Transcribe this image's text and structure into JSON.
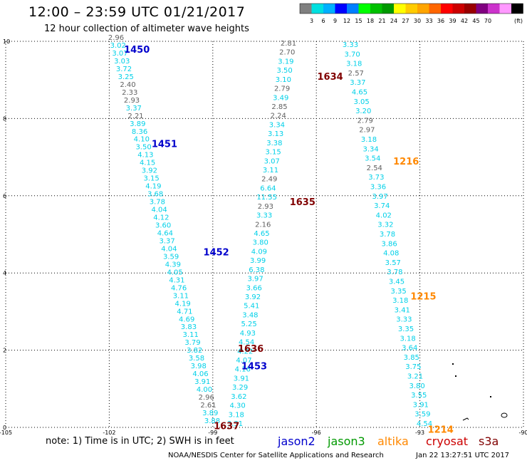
{
  "title": "12:00 – 23:59 UTC 01/21/2017",
  "subtitle": "12 hour collection of altimeter wave heights",
  "note": "note:  1) Time is in UTC; 2) SWH is in feet",
  "credit": "NOAA/NESDIS Center for Satellite Applications and Research",
  "timestamp": "Jan 22 13:27:51 UTC 2017",
  "satellites": [
    {
      "name": "jason2",
      "color": "#0000cc"
    },
    {
      "name": "jason3",
      "color": "#009900"
    },
    {
      "name": "altika",
      "color": "#ff8800"
    },
    {
      "name": "cryosat",
      "color": "#cc0000"
    },
    {
      "name": "s3a",
      "color": "#800000"
    }
  ],
  "legend": {
    "colors": [
      "#808080",
      "#00e0e0",
      "#00b0ff",
      "#0000ff",
      "#007fff",
      "#00ff00",
      "#00c000",
      "#009900",
      "#ffff00",
      "#ffcc00",
      "#ffa500",
      "#ff6600",
      "#ff0000",
      "#cc0000",
      "#990000",
      "#800080",
      "#cc33cc",
      "#ff99ff",
      "#000000"
    ],
    "labels": [
      "3",
      "6",
      "9",
      "12",
      "15",
      "18",
      "21",
      "24",
      "27",
      "30",
      "33",
      "36",
      "39",
      "42",
      "45",
      "70"
    ],
    "unit": "(ft)"
  },
  "axes": {
    "x_ticks": [
      "-105",
      "-102",
      "-99",
      "-96",
      "-93",
      "-90"
    ],
    "y_ticks": [
      "0",
      "2",
      "4",
      "6",
      "8",
      "10"
    ],
    "xlim": [
      -105,
      -90
    ],
    "ylim": [
      0,
      10
    ]
  },
  "markers": {
    "text_colors": {
      "gray": "#606060",
      "cyan": "#00d0e8",
      "orange": "#ff8800",
      "black": "#000000"
    },
    "pass_label_colors": {
      "jason2": "#0000cc",
      "s3a": "#800000",
      "altika": "#ff8800"
    }
  },
  "passes": [
    {
      "id": "1450",
      "sat": "jason2",
      "label_pos": [
        -101.2,
        9.8
      ]
    },
    {
      "id": "1451",
      "sat": "jason2",
      "label_pos": [
        -100.4,
        7.35
      ]
    },
    {
      "id": "1452",
      "sat": "jason2",
      "label_pos": [
        -98.9,
        4.55
      ]
    },
    {
      "id": "1453",
      "sat": "jason2",
      "label_pos": [
        -97.8,
        1.6
      ]
    },
    {
      "id": "1634",
      "sat": "s3a",
      "label_pos": [
        -95.6,
        9.1
      ]
    },
    {
      "id": "1635",
      "sat": "s3a",
      "label_pos": [
        -96.4,
        5.85
      ]
    },
    {
      "id": "1636",
      "sat": "s3a",
      "label_pos": [
        -97.9,
        2.05
      ]
    },
    {
      "id": "1637",
      "sat": "s3a",
      "label_pos": [
        -98.6,
        0.05
      ]
    },
    {
      "id": "1216",
      "sat": "altika",
      "label_pos": [
        -93.4,
        6.9
      ]
    },
    {
      "id": "1215",
      "sat": "altika",
      "label_pos": [
        -92.9,
        3.4
      ]
    },
    {
      "id": "1214",
      "sat": "altika",
      "label_pos": [
        -92.4,
        -0.05
      ]
    }
  ],
  "swh_tracks": {
    "jason2": [
      [
        "2.96",
        "gray"
      ],
      [
        "3.02",
        "cyan"
      ],
      [
        "3.07",
        "cyan"
      ],
      [
        "3.03",
        "cyan"
      ],
      [
        "3.72",
        "cyan"
      ],
      [
        "3.25",
        "cyan"
      ],
      [
        "2.40",
        "gray"
      ],
      [
        "2.33",
        "gray"
      ],
      [
        "2.93",
        "gray"
      ],
      [
        "3.37",
        "cyan"
      ],
      [
        "2.21",
        "gray"
      ],
      [
        "3.89",
        "cyan"
      ],
      [
        "8.36",
        "cyan"
      ],
      [
        "4.10",
        "cyan"
      ],
      [
        "3.50",
        "cyan"
      ],
      [
        "4.13",
        "cyan"
      ],
      [
        "4.15",
        "cyan"
      ],
      [
        "3.92",
        "cyan"
      ],
      [
        "3.15",
        "cyan"
      ],
      [
        "4.19",
        "cyan"
      ],
      [
        "3.68",
        "cyan"
      ],
      [
        "3.78",
        "cyan"
      ],
      [
        "4.04",
        "cyan"
      ],
      [
        "4.12",
        "cyan"
      ],
      [
        "3.60",
        "cyan"
      ],
      [
        "4.64",
        "cyan"
      ],
      [
        "3.37",
        "cyan"
      ],
      [
        "4.04",
        "cyan"
      ],
      [
        "3.59",
        "cyan"
      ],
      [
        "4.39",
        "cyan"
      ],
      [
        "4.05",
        "cyan"
      ],
      [
        "4.31",
        "cyan"
      ],
      [
        "4.76",
        "cyan"
      ],
      [
        "3.11",
        "cyan"
      ],
      [
        "4.19",
        "cyan"
      ],
      [
        "4.71",
        "cyan"
      ],
      [
        "4.69",
        "cyan"
      ],
      [
        "3.83",
        "cyan"
      ],
      [
        "3.11",
        "cyan"
      ],
      [
        "3.79",
        "cyan"
      ],
      [
        "3.82",
        "cyan"
      ],
      [
        "3.58",
        "cyan"
      ],
      [
        "3.98",
        "cyan"
      ],
      [
        "4.06",
        "cyan"
      ],
      [
        "3.91",
        "cyan"
      ],
      [
        "4.00",
        "cyan"
      ],
      [
        "2.96",
        "gray"
      ],
      [
        "2.61",
        "gray"
      ],
      [
        "3.89",
        "cyan"
      ],
      [
        "3.88",
        "cyan"
      ]
    ],
    "s3a": [
      [
        "2.81",
        "gray"
      ],
      [
        "2.70",
        "gray"
      ],
      [
        "3.19",
        "cyan"
      ],
      [
        "3.50",
        "cyan"
      ],
      [
        "3.10",
        "cyan"
      ],
      [
        "2.79",
        "gray"
      ],
      [
        "3.49",
        "cyan"
      ],
      [
        "2.85",
        "gray"
      ],
      [
        "2.24",
        "gray"
      ],
      [
        "3.34",
        "cyan"
      ],
      [
        "3.13",
        "cyan"
      ],
      [
        "3.38",
        "cyan"
      ],
      [
        "3.15",
        "cyan"
      ],
      [
        "3.07",
        "cyan"
      ],
      [
        "3.11",
        "cyan"
      ],
      [
        "2.49",
        "gray"
      ],
      [
        "6.64",
        "cyan"
      ],
      [
        "11.55",
        "cyan"
      ],
      [
        "2.93",
        "gray"
      ],
      [
        "3.33",
        "cyan"
      ],
      [
        "2.16",
        "gray"
      ],
      [
        "4.65",
        "cyan"
      ],
      [
        "3.80",
        "cyan"
      ],
      [
        "4.09",
        "cyan"
      ],
      [
        "3.99",
        "cyan"
      ],
      [
        "6.38",
        "cyan"
      ],
      [
        "3.97",
        "cyan"
      ],
      [
        "3.66",
        "cyan"
      ],
      [
        "3.92",
        "cyan"
      ],
      [
        "5.41",
        "cyan"
      ],
      [
        "3.48",
        "cyan"
      ],
      [
        "5.25",
        "cyan"
      ],
      [
        "4.93",
        "cyan"
      ],
      [
        "4.54",
        "cyan"
      ],
      [
        "4.22",
        "cyan"
      ],
      [
        "4.07",
        "cyan"
      ],
      [
        "4.16",
        "cyan"
      ],
      [
        "3.91",
        "cyan"
      ],
      [
        "3.29",
        "cyan"
      ],
      [
        "3.62",
        "cyan"
      ],
      [
        "4.30",
        "cyan"
      ],
      [
        "3.18",
        "cyan"
      ],
      [
        "3.31",
        "cyan"
      ]
    ],
    "altika": [
      [
        "3.33",
        "cyan"
      ],
      [
        "3.70",
        "cyan"
      ],
      [
        "3.18",
        "cyan"
      ],
      [
        "2.57",
        "gray"
      ],
      [
        "3.37",
        "cyan"
      ],
      [
        "4.65",
        "cyan"
      ],
      [
        "3.05",
        "cyan"
      ],
      [
        "3.20",
        "cyan"
      ],
      [
        "2.79",
        "gray"
      ],
      [
        "2.97",
        "gray"
      ],
      [
        "3.18",
        "cyan"
      ],
      [
        "3.34",
        "cyan"
      ],
      [
        "3.54",
        "cyan"
      ],
      [
        "2.54",
        "gray"
      ],
      [
        "3.73",
        "cyan"
      ],
      [
        "3.36",
        "cyan"
      ],
      [
        "3.97",
        "cyan"
      ],
      [
        "3.74",
        "cyan"
      ],
      [
        "4.02",
        "cyan"
      ],
      [
        "3.32",
        "cyan"
      ],
      [
        "3.78",
        "cyan"
      ],
      [
        "3.86",
        "cyan"
      ],
      [
        "4.08",
        "cyan"
      ],
      [
        "3.57",
        "cyan"
      ],
      [
        "3.78",
        "cyan"
      ],
      [
        "3.45",
        "cyan"
      ],
      [
        "3.35",
        "cyan"
      ],
      [
        "3.18",
        "cyan"
      ],
      [
        "3.41",
        "cyan"
      ],
      [
        "3.33",
        "cyan"
      ],
      [
        "3.35",
        "cyan"
      ],
      [
        "3.18",
        "cyan"
      ],
      [
        "3.64",
        "cyan"
      ],
      [
        "3.85",
        "cyan"
      ],
      [
        "3.75",
        "cyan"
      ],
      [
        "3.21",
        "cyan"
      ],
      [
        "3.80",
        "cyan"
      ],
      [
        "3.55",
        "cyan"
      ],
      [
        "3.91",
        "cyan"
      ],
      [
        "3.59",
        "cyan"
      ],
      [
        "4.54",
        "cyan"
      ]
    ]
  }
}
